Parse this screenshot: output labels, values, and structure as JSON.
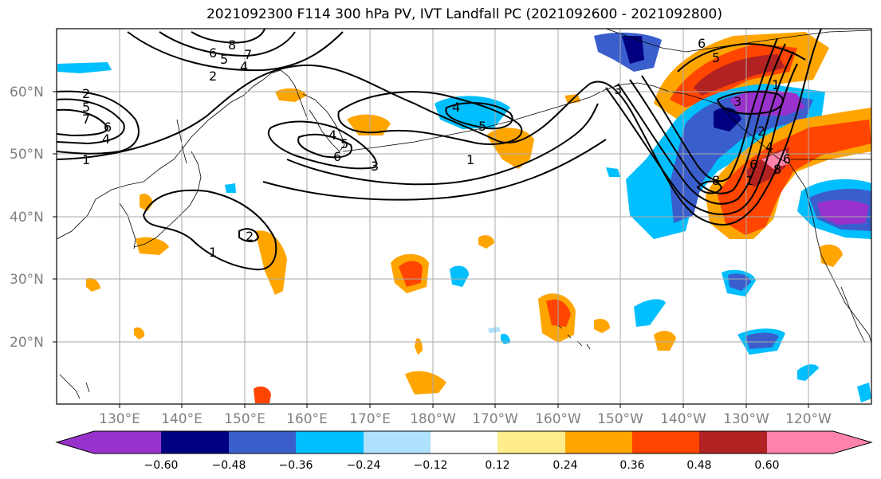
{
  "title": "2021092300 F114 300 hPa PV, IVT Landfall PC (2021092600 - 2021092800)",
  "latitude_labels": [
    "60°N",
    "50°N",
    "40°N",
    "30°N",
    "20°N"
  ],
  "longitude_labels": [
    "130°E",
    "140°E",
    "150°E",
    "160°E",
    "170°E",
    "180°W",
    "170°W",
    "160°W",
    "150°W",
    "140°W",
    "130°W",
    "120°W"
  ],
  "colorbar": {
    "ticks": [
      "−0.60",
      "−0.48",
      "−0.36",
      "−0.24",
      "−0.12",
      "0.12",
      "0.24",
      "0.36",
      "0.48",
      "0.60"
    ],
    "colors": [
      "#9932cc",
      "#000080",
      "#3a5fcd",
      "#00bfff",
      "#b0e2ff",
      "#ffffff",
      "#ffec8b",
      "#ffa500",
      "#ff4500",
      "#b22222",
      "#ff82ab"
    ]
  },
  "contour_labels": [
    "8",
    "7",
    "6",
    "5",
    "4",
    "2",
    "2",
    "5",
    "7",
    "6",
    "4",
    "1",
    "4",
    "5",
    "6",
    "3",
    "4",
    "5",
    "1",
    "2",
    "1",
    "6",
    "5",
    "1",
    "3",
    "2",
    "4",
    "6",
    "8",
    "1",
    "8",
    "6",
    "3"
  ],
  "colors": {
    "grid": "#a9a9a9",
    "coast": "#000000",
    "contour": "#000000",
    "tick_text": "#808080"
  }
}
